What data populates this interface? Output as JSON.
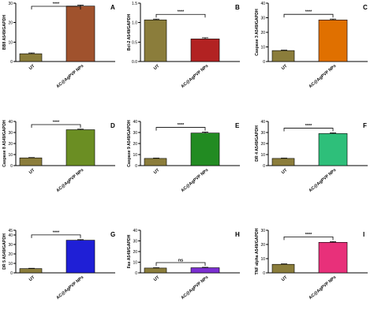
{
  "chart_data": [
    {
      "panel_letter": "A",
      "type": "bar",
      "ylabel": "BB8 A549/GAPDH",
      "yticks": [
        0,
        10,
        20,
        30
      ],
      "ytick_labels": [
        "0",
        "10",
        "20",
        "30"
      ],
      "ylim": [
        0,
        30
      ],
      "categories": [
        "UT",
        "AC@AgPVP NPs"
      ],
      "values": [
        4,
        28.5
      ],
      "errors": [
        0.4,
        0.5
      ],
      "colors": [
        "#8b7d3b",
        "#a0522d"
      ],
      "significance": "****"
    },
    {
      "panel_letter": "B",
      "type": "bar",
      "ylabel": "Bcl-2 A549/GAPDH",
      "yticks": [
        0,
        0.5,
        1.0,
        1.5
      ],
      "ytick_labels": [
        "0.0",
        "0.5",
        "1.0",
        "1.5"
      ],
      "ylim": [
        0,
        1.5
      ],
      "categories": [
        "UT",
        "AC@AgPVP NPs"
      ],
      "values": [
        1.07,
        0.58
      ],
      "errors": [
        0.02,
        0.03
      ],
      "colors": [
        "#8b7d3b",
        "#b22222"
      ],
      "significance": "****"
    },
    {
      "panel_letter": "C",
      "type": "bar",
      "ylabel": "Caspase 3 A549/GAPDH",
      "yticks": [
        0,
        10,
        20,
        30,
        40
      ],
      "ytick_labels": [
        "0",
        "10",
        "20",
        "30",
        "40"
      ],
      "ylim": [
        0,
        40
      ],
      "categories": [
        "UT",
        "AC@AgPVP NPs"
      ],
      "values": [
        7.5,
        28.5
      ],
      "errors": [
        0.3,
        0.6
      ],
      "colors": [
        "#8b7d3b",
        "#e07000"
      ],
      "significance": "****"
    },
    {
      "panel_letter": "D",
      "type": "bar",
      "ylabel": "Caspase 8 A549/GAPDH",
      "yticks": [
        0,
        10,
        20,
        30,
        40
      ],
      "ytick_labels": [
        "0",
        "10",
        "20",
        "30",
        "40"
      ],
      "ylim": [
        0,
        40
      ],
      "categories": [
        "UT",
        "AC@AgPVP NPs"
      ],
      "values": [
        7,
        32.5
      ],
      "errors": [
        0.3,
        0.5
      ],
      "colors": [
        "#8b7d3b",
        "#6b8e23"
      ],
      "significance": "****"
    },
    {
      "panel_letter": "E",
      "type": "bar",
      "ylabel": "Caspase 9 A549/GAPDH",
      "yticks": [
        0,
        10,
        20,
        30,
        40
      ],
      "ytick_labels": [
        "0",
        "10",
        "20",
        "30",
        "40"
      ],
      "ylim": [
        0,
        40
      ],
      "categories": [
        "UT",
        "AC@AgPVP NPs"
      ],
      "values": [
        6.5,
        29.5
      ],
      "errors": [
        0.3,
        0.8
      ],
      "colors": [
        "#8b7d3b",
        "#228b22"
      ],
      "significance": "****"
    },
    {
      "panel_letter": "F",
      "type": "bar",
      "ylabel": "DR 4 A549/GAPDH",
      "yticks": [
        0,
        10,
        20,
        30,
        40
      ],
      "ytick_labels": [
        "0",
        "10",
        "20",
        "30",
        "40"
      ],
      "ylim": [
        0,
        40
      ],
      "categories": [
        "UT",
        "AC@AgPVP NPs"
      ],
      "values": [
        6.5,
        29
      ],
      "errors": [
        0.3,
        0.6
      ],
      "colors": [
        "#8b7d3b",
        "#2ebf7a"
      ],
      "significance": "****"
    },
    {
      "panel_letter": "G",
      "type": "bar",
      "ylabel": "DR 5 A549/GAPDH",
      "yticks": [
        0,
        10,
        20,
        30,
        40,
        45
      ],
      "ytick_labels": [
        "0",
        "10",
        "20",
        "30",
        "40",
        "45"
      ],
      "ylim": [
        0,
        45
      ],
      "categories": [
        "UT",
        "AC@AgPVP NPs"
      ],
      "values": [
        4.5,
        34.5
      ],
      "errors": [
        0.3,
        0.6
      ],
      "colors": [
        "#8b7d3b",
        "#1f1fd6"
      ],
      "significance": "****"
    },
    {
      "panel_letter": "H",
      "type": "bar",
      "ylabel": "Fas A549/GAPDH",
      "yticks": [
        0,
        10,
        20,
        30,
        40
      ],
      "ytick_labels": [
        "0",
        "10",
        "20",
        "30",
        "40"
      ],
      "ylim": [
        0,
        40
      ],
      "categories": [
        "UT",
        "AC@AgPVP NPs"
      ],
      "values": [
        4.5,
        4.8
      ],
      "errors": [
        0.3,
        0.4
      ],
      "colors": [
        "#8b7d3b",
        "#7b2fd1"
      ],
      "significance": "ns"
    },
    {
      "panel_letter": "I",
      "type": "bar",
      "ylabel": "TNF alpha A549/GAPDH",
      "yticks": [
        0,
        10,
        20,
        30
      ],
      "ytick_labels": [
        "0",
        "10",
        "20",
        "30"
      ],
      "ylim": [
        0,
        30
      ],
      "categories": [
        "UT",
        "AC@AgPVP NPs"
      ],
      "values": [
        6,
        21.5
      ],
      "errors": [
        0.3,
        0.5
      ],
      "colors": [
        "#8b7d3b",
        "#e8307a"
      ],
      "significance": "****"
    }
  ]
}
